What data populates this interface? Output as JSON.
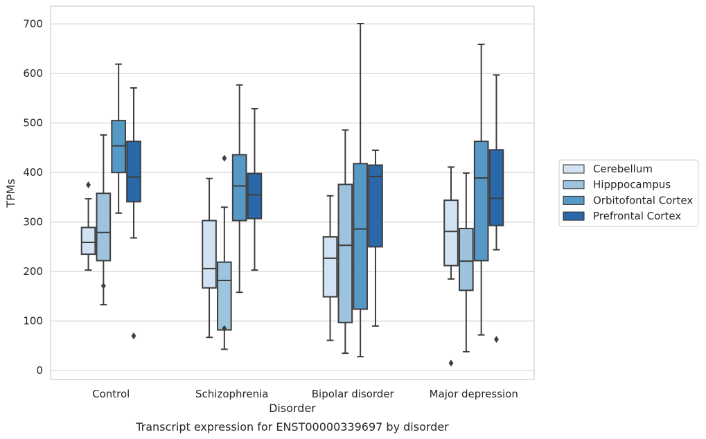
{
  "caption": "Transcript expression for ENST00000339697 by disorder",
  "chart_data": {
    "type": "box",
    "xlabel": "Disorder",
    "ylabel": "TPMs",
    "ylim": [
      -18,
      736
    ],
    "yticks": [
      0,
      100,
      200,
      300,
      400,
      500,
      600,
      700
    ],
    "grid": "horizontal",
    "legend_position": "right",
    "categories": [
      "Control",
      "Schizophrenia",
      "Bipolar disorder",
      "Major depression"
    ],
    "series": [
      {
        "name": "Cerebellum",
        "color": "#d1e2f2",
        "boxes": [
          {
            "whisker_low": 203,
            "q1": 235,
            "median": 259,
            "q3": 289,
            "whisker_high": 347,
            "outliers": [
              375
            ]
          },
          {
            "whisker_low": 67,
            "q1": 167,
            "median": 206,
            "q3": 303,
            "whisker_high": 388,
            "outliers": []
          },
          {
            "whisker_low": 61,
            "q1": 149,
            "median": 227,
            "q3": 270,
            "whisker_high": 353,
            "outliers": []
          },
          {
            "whisker_low": 185,
            "q1": 212,
            "median": 281,
            "q3": 344,
            "whisker_high": 411,
            "outliers": [
              15
            ]
          }
        ]
      },
      {
        "name": "Hipppocampus",
        "color": "#9dc3dd",
        "boxes": [
          {
            "whisker_low": 133,
            "q1": 222,
            "median": 279,
            "q3": 358,
            "whisker_high": 476,
            "outliers": [
              171
            ]
          },
          {
            "whisker_low": 43,
            "q1": 82,
            "median": 182,
            "q3": 219,
            "whisker_high": 330,
            "outliers": [
              429,
              85
            ]
          },
          {
            "whisker_low": 35,
            "q1": 97,
            "median": 253,
            "q3": 376,
            "whisker_high": 486,
            "outliers": []
          },
          {
            "whisker_low": 38,
            "q1": 162,
            "median": 221,
            "q3": 287,
            "whisker_high": 399,
            "outliers": []
          }
        ]
      },
      {
        "name": "Orbitofontal Cortex",
        "color": "#5799c6",
        "boxes": [
          {
            "whisker_low": 318,
            "q1": 400,
            "median": 454,
            "q3": 505,
            "whisker_high": 619,
            "outliers": []
          },
          {
            "whisker_low": 158,
            "q1": 303,
            "median": 373,
            "q3": 436,
            "whisker_high": 577,
            "outliers": []
          },
          {
            "whisker_low": 28,
            "q1": 124,
            "median": 286,
            "q3": 418,
            "whisker_high": 701,
            "outliers": []
          },
          {
            "whisker_low": 72,
            "q1": 222,
            "median": 389,
            "q3": 463,
            "whisker_high": 659,
            "outliers": []
          }
        ]
      },
      {
        "name": "Prefrontal Cortex",
        "color": "#2a68a9",
        "boxes": [
          {
            "whisker_low": 268,
            "q1": 341,
            "median": 391,
            "q3": 463,
            "whisker_high": 571,
            "outliers": [
              70
            ]
          },
          {
            "whisker_low": 203,
            "q1": 307,
            "median": 355,
            "q3": 398,
            "whisker_high": 529,
            "outliers": []
          },
          {
            "whisker_low": 90,
            "q1": 250,
            "median": 392,
            "q3": 415,
            "whisker_high": 445,
            "outliers": []
          },
          {
            "whisker_low": 244,
            "q1": 293,
            "median": 348,
            "q3": 446,
            "whisker_high": 597,
            "outliers": [
              63
            ]
          }
        ]
      }
    ]
  }
}
